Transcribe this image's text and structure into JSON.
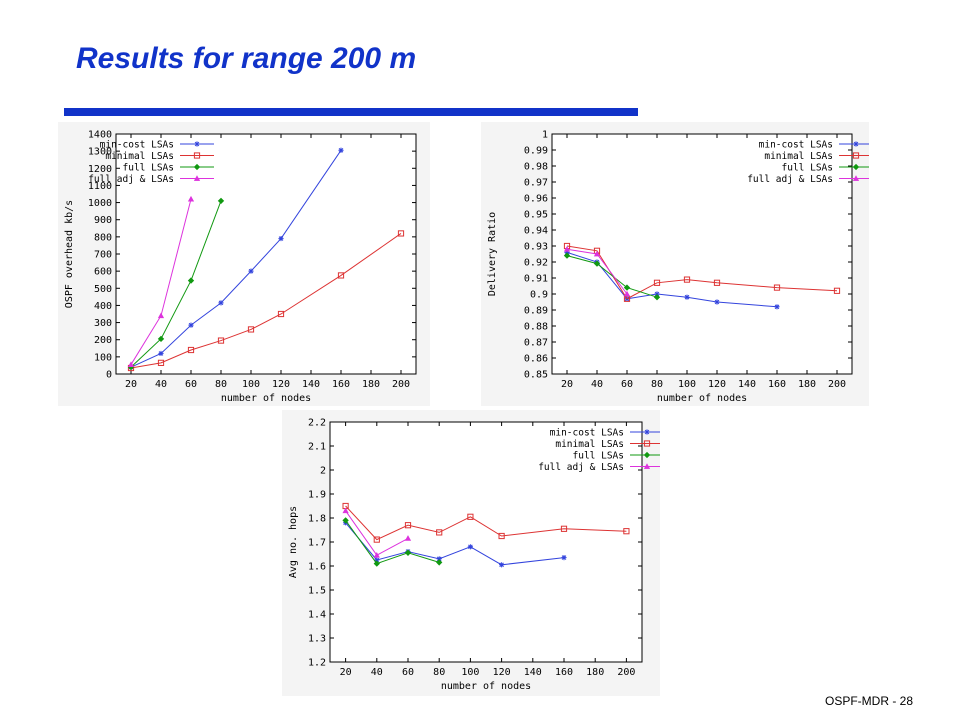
{
  "title": "Results for range 200 m",
  "footer": "OSPF-MDR - 28",
  "colors": {
    "title": "#1133c9",
    "min-cost": "#3344dd",
    "minimal": "#dd3333",
    "full": "#119911",
    "full-adj": "#dd33dd"
  },
  "chart_data": [
    {
      "type": "line",
      "xlabel": "number of nodes",
      "ylabel": "OSPF overhead kb/s",
      "xlim": [
        10,
        210
      ],
      "ylim": [
        0,
        1400
      ],
      "xticks": [
        20,
        40,
        60,
        80,
        100,
        120,
        140,
        160,
        180,
        200
      ],
      "yticks": [
        0,
        100,
        200,
        300,
        400,
        500,
        600,
        700,
        800,
        900,
        1000,
        1100,
        1200,
        1300,
        1400
      ],
      "legend_position": "top-left",
      "grid": false,
      "series": [
        {
          "name": "min-cost LSAs",
          "marker": "star",
          "color": "#3344dd",
          "x": [
            20,
            40,
            60,
            80,
            100,
            120,
            160
          ],
          "y": [
            40,
            120,
            285,
            415,
            600,
            790,
            1305
          ]
        },
        {
          "name": "minimal LSAs",
          "marker": "square",
          "color": "#dd3333",
          "x": [
            20,
            40,
            60,
            80,
            100,
            120,
            160,
            200
          ],
          "y": [
            35,
            65,
            140,
            195,
            260,
            350,
            575,
            820
          ]
        },
        {
          "name": "full LSAs",
          "marker": "diamond",
          "color": "#119911",
          "x": [
            20,
            40,
            60,
            80
          ],
          "y": [
            40,
            205,
            545,
            1010
          ]
        },
        {
          "name": "full adj & LSAs",
          "marker": "triangle",
          "color": "#dd33dd",
          "x": [
            20,
            40,
            60
          ],
          "y": [
            55,
            340,
            1020
          ]
        }
      ]
    },
    {
      "type": "line",
      "xlabel": "number of nodes",
      "ylabel": "Delivery Ratio",
      "xlim": [
        10,
        210
      ],
      "ylim": [
        0.85,
        1
      ],
      "xticks": [
        20,
        40,
        60,
        80,
        100,
        120,
        140,
        160,
        180,
        200
      ],
      "yticks": [
        0.85,
        0.86,
        0.87,
        0.88,
        0.89,
        0.9,
        0.91,
        0.92,
        0.93,
        0.94,
        0.95,
        0.96,
        0.97,
        0.98,
        0.99,
        1
      ],
      "legend_position": "top-right",
      "grid": false,
      "series": [
        {
          "name": "min-cost LSAs",
          "marker": "star",
          "color": "#3344dd",
          "x": [
            20,
            40,
            60,
            80,
            100,
            120,
            160
          ],
          "y": [
            0.926,
            0.92,
            0.897,
            0.9,
            0.898,
            0.895,
            0.892
          ]
        },
        {
          "name": "minimal LSAs",
          "marker": "square",
          "color": "#dd3333",
          "x": [
            20,
            40,
            60,
            80,
            100,
            120,
            160,
            200
          ],
          "y": [
            0.93,
            0.927,
            0.897,
            0.907,
            0.909,
            0.907,
            0.904,
            0.902
          ]
        },
        {
          "name": "full LSAs",
          "marker": "diamond",
          "color": "#119911",
          "x": [
            20,
            40,
            60,
            80
          ],
          "y": [
            0.924,
            0.919,
            0.904,
            0.898
          ]
        },
        {
          "name": "full adj & LSAs",
          "marker": "triangle",
          "color": "#dd33dd",
          "x": [
            20,
            40,
            60
          ],
          "y": [
            0.928,
            0.925,
            0.9
          ]
        }
      ]
    },
    {
      "type": "line",
      "xlabel": "number of nodes",
      "ylabel": "Avg no. hops",
      "xlim": [
        10,
        210
      ],
      "ylim": [
        1.2,
        2.2
      ],
      "xticks": [
        20,
        40,
        60,
        80,
        100,
        120,
        140,
        160,
        180,
        200
      ],
      "yticks": [
        1.2,
        1.3,
        1.4,
        1.5,
        1.6,
        1.7,
        1.8,
        1.9,
        2,
        2.1,
        2.2
      ],
      "legend_position": "top-right",
      "grid": false,
      "series": [
        {
          "name": "min-cost LSAs",
          "marker": "star",
          "color": "#3344dd",
          "x": [
            20,
            40,
            60,
            80,
            100,
            120,
            160
          ],
          "y": [
            1.78,
            1.625,
            1.66,
            1.63,
            1.68,
            1.605,
            1.635
          ]
        },
        {
          "name": "minimal LSAs",
          "marker": "square",
          "color": "#dd3333",
          "x": [
            20,
            40,
            60,
            80,
            100,
            120,
            160,
            200
          ],
          "y": [
            1.85,
            1.71,
            1.77,
            1.74,
            1.805,
            1.725,
            1.755,
            1.745
          ]
        },
        {
          "name": "full LSAs",
          "marker": "diamond",
          "color": "#119911",
          "x": [
            20,
            40,
            60,
            80
          ],
          "y": [
            1.79,
            1.61,
            1.655,
            1.615
          ]
        },
        {
          "name": "full adj & LSAs",
          "marker": "triangle",
          "color": "#dd33dd",
          "x": [
            20,
            40,
            60
          ],
          "y": [
            1.83,
            1.645,
            1.715
          ]
        }
      ]
    }
  ]
}
